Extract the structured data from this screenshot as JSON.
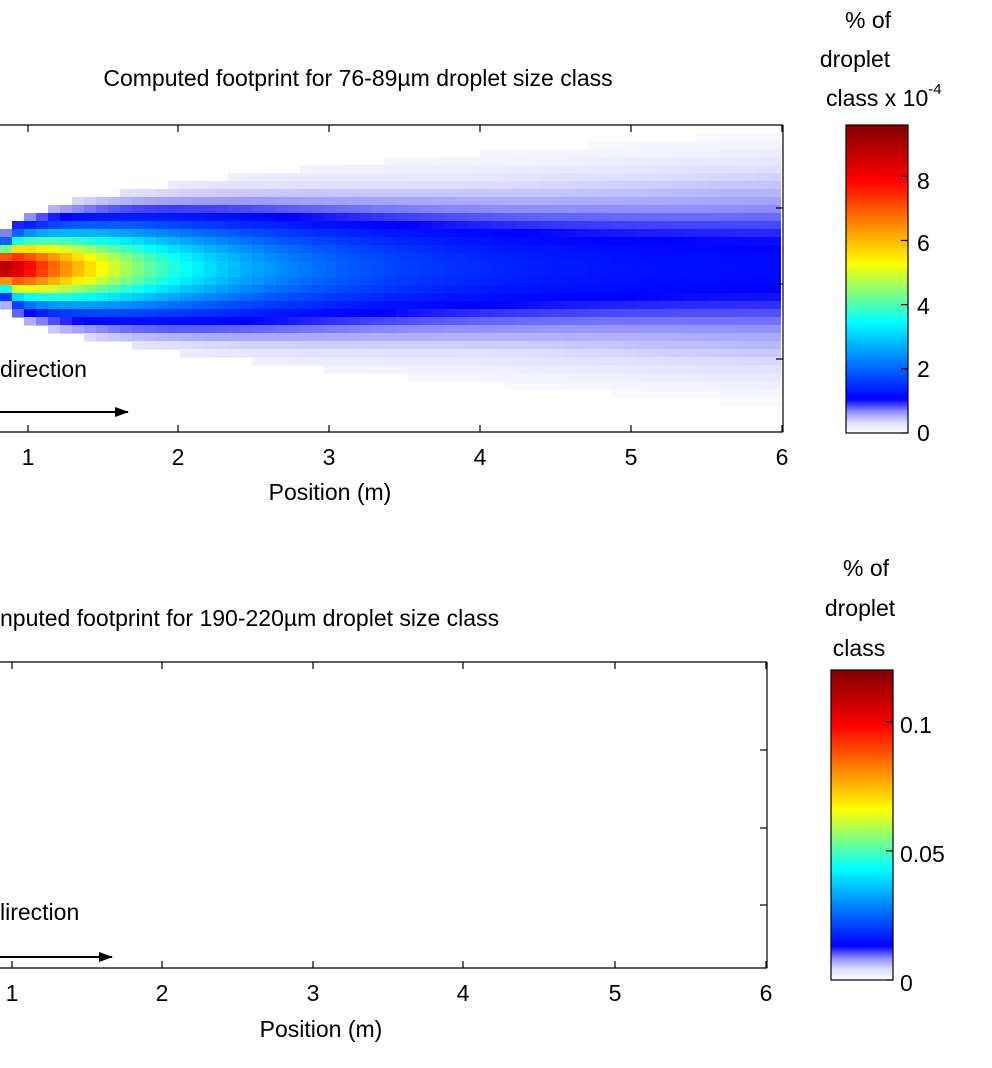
{
  "chart_data": [
    {
      "type": "heatmap",
      "title": "Computed footprint for 76-89µm droplet size class",
      "xlabel": "Position (m)",
      "x_ticks": [
        "1",
        "2",
        "3",
        "4",
        "5",
        "6"
      ],
      "xlim": [
        0,
        6
      ],
      "annotation": "direction",
      "colorbar": {
        "label_lines": [
          "% of",
          "droplet",
          "class x 10"
        ],
        "exponent": "-4",
        "ticks": [
          "0",
          "2",
          "4",
          "6",
          "8"
        ],
        "tick_values": [
          0,
          2,
          4,
          6,
          8
        ],
        "range": [
          0,
          9.6
        ]
      },
      "peak_value": 9.5,
      "peak_position_m": 0.8,
      "decay_length_m": 1.0,
      "tail_value": 1.1,
      "spread_start_relative": 0.23,
      "spread_end_relative": 0.85,
      "colormap": "jet"
    },
    {
      "type": "heatmap",
      "title": "nputed footprint for 190-220µm droplet size class",
      "xlabel": "Position (m)",
      "x_ticks": [
        "1",
        "2",
        "3",
        "4",
        "5",
        "6"
      ],
      "xlim": [
        0,
        6
      ],
      "annotation": "lirection",
      "colorbar": {
        "label_lines": [
          "% of",
          "droplet",
          "class"
        ],
        "exponent": "",
        "ticks": [
          "0",
          "0.05",
          "0.1"
        ],
        "tick_values": [
          0,
          0.05,
          0.1
        ],
        "range": [
          0,
          0.12
        ]
      },
      "colormap": "jet"
    }
  ]
}
